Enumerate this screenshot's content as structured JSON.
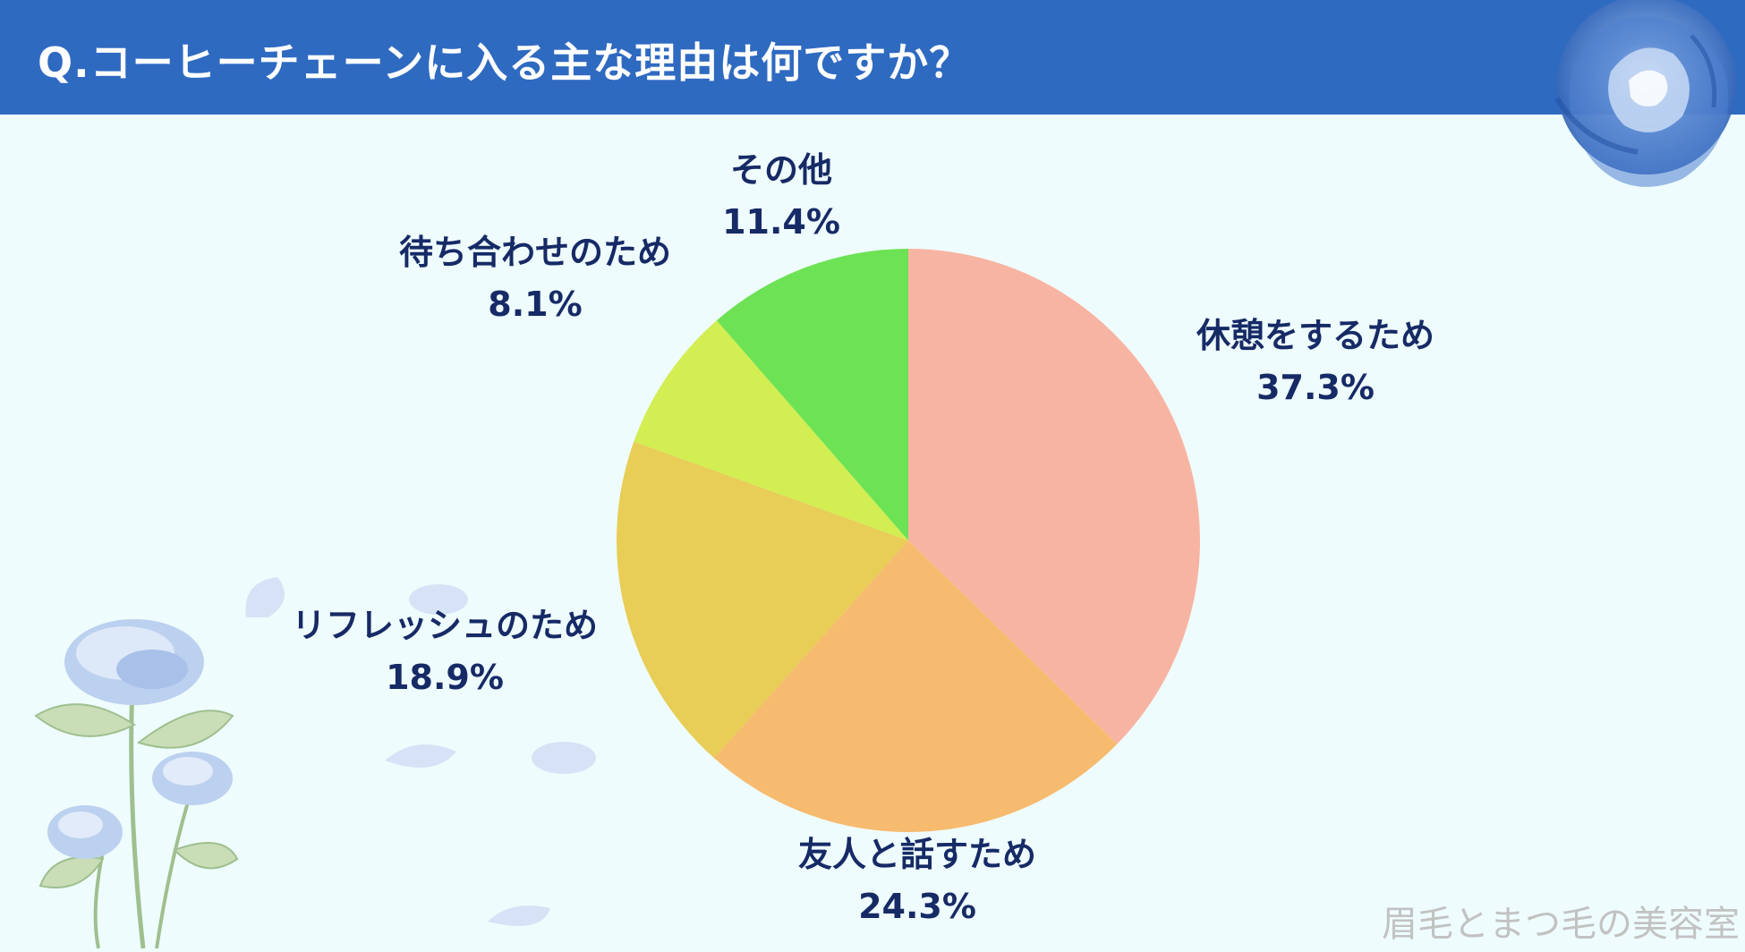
{
  "header": {
    "title": "Q.コーヒーチェーンに入る主な理由は何ですか？"
  },
  "watermark": "眉毛とまつ毛の美容室",
  "decorations": {
    "top_right": "blue-rose",
    "bottom_left": "blue-roses-with-stems",
    "scattered": "blue-petals"
  },
  "chart_data": {
    "type": "pie",
    "title": "Q.コーヒーチェーンに入る主な理由は何ですか？",
    "start": "12 o'clock",
    "direction": "clockwise",
    "legend": "none (labels placed beside slices)",
    "slices": [
      {
        "label": "休憩をするため",
        "value": 37.3,
        "value_text": "37.3%",
        "color": "#f8b4a2"
      },
      {
        "label": "友人と話すため",
        "value": 24.3,
        "value_text": "24.3%",
        "color": "#f6bb6e"
      },
      {
        "label": "リフレッシュのため",
        "value": 18.9,
        "value_text": "18.9%",
        "color": "#e8cd56"
      },
      {
        "label": "待ち合わせのため",
        "value": 8.1,
        "value_text": "8.1%",
        "color": "#d2ee52"
      },
      {
        "label": "その他",
        "value": 11.4,
        "value_text": "11.4%",
        "color": "#6de254"
      }
    ]
  }
}
